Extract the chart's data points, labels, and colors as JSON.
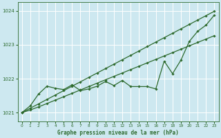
{
  "background_color": "#cde8f0",
  "plot_bg_color": "#cde8f0",
  "grid_color": "#ffffff",
  "line_color": "#2d6a2d",
  "xlabel": "Graphe pression niveau de la mer (hPa)",
  "ylim": [
    1020.75,
    1024.25
  ],
  "xlim": [
    -0.5,
    23.5
  ],
  "yticks": [
    1021,
    1022,
    1023,
    1024
  ],
  "xticks": [
    0,
    1,
    2,
    3,
    4,
    5,
    6,
    7,
    8,
    9,
    10,
    11,
    12,
    13,
    14,
    15,
    16,
    17,
    18,
    19,
    20,
    21,
    22,
    23
  ],
  "hours": [
    0,
    1,
    2,
    3,
    4,
    5,
    6,
    7,
    8,
    9,
    10,
    11,
    12,
    13,
    14,
    15,
    16,
    17,
    18,
    19,
    20,
    21,
    22,
    23
  ],
  "line_straight_top": [
    1021.0,
    1021.13,
    1021.26,
    1021.39,
    1021.52,
    1021.65,
    1021.78,
    1021.91,
    1022.04,
    1022.17,
    1022.3,
    1022.43,
    1022.56,
    1022.69,
    1022.82,
    1022.95,
    1023.08,
    1023.21,
    1023.34,
    1023.47,
    1023.6,
    1023.73,
    1023.86,
    1023.99
  ],
  "line_wavy": [
    1021.0,
    1021.2,
    1021.55,
    1021.78,
    1021.72,
    1021.68,
    1021.82,
    1021.65,
    1021.7,
    1021.78,
    1021.92,
    1021.8,
    1021.95,
    1021.77,
    1021.77,
    1021.77,
    1021.7,
    1022.52,
    1022.15,
    1022.55,
    1023.1,
    1023.4,
    1023.58,
    1023.88
  ],
  "line_straight_low": [
    1021.0,
    1021.08,
    1021.17,
    1021.27,
    1021.37,
    1021.47,
    1021.57,
    1021.67,
    1021.77,
    1021.87,
    1021.97,
    1022.07,
    1022.17,
    1022.27,
    1022.37,
    1022.47,
    1022.57,
    1022.67,
    1022.77,
    1022.87,
    1022.97,
    1023.07,
    1023.17,
    1023.27
  ],
  "marker_style": "D",
  "marker_size": 1.8,
  "linewidth": 0.9
}
